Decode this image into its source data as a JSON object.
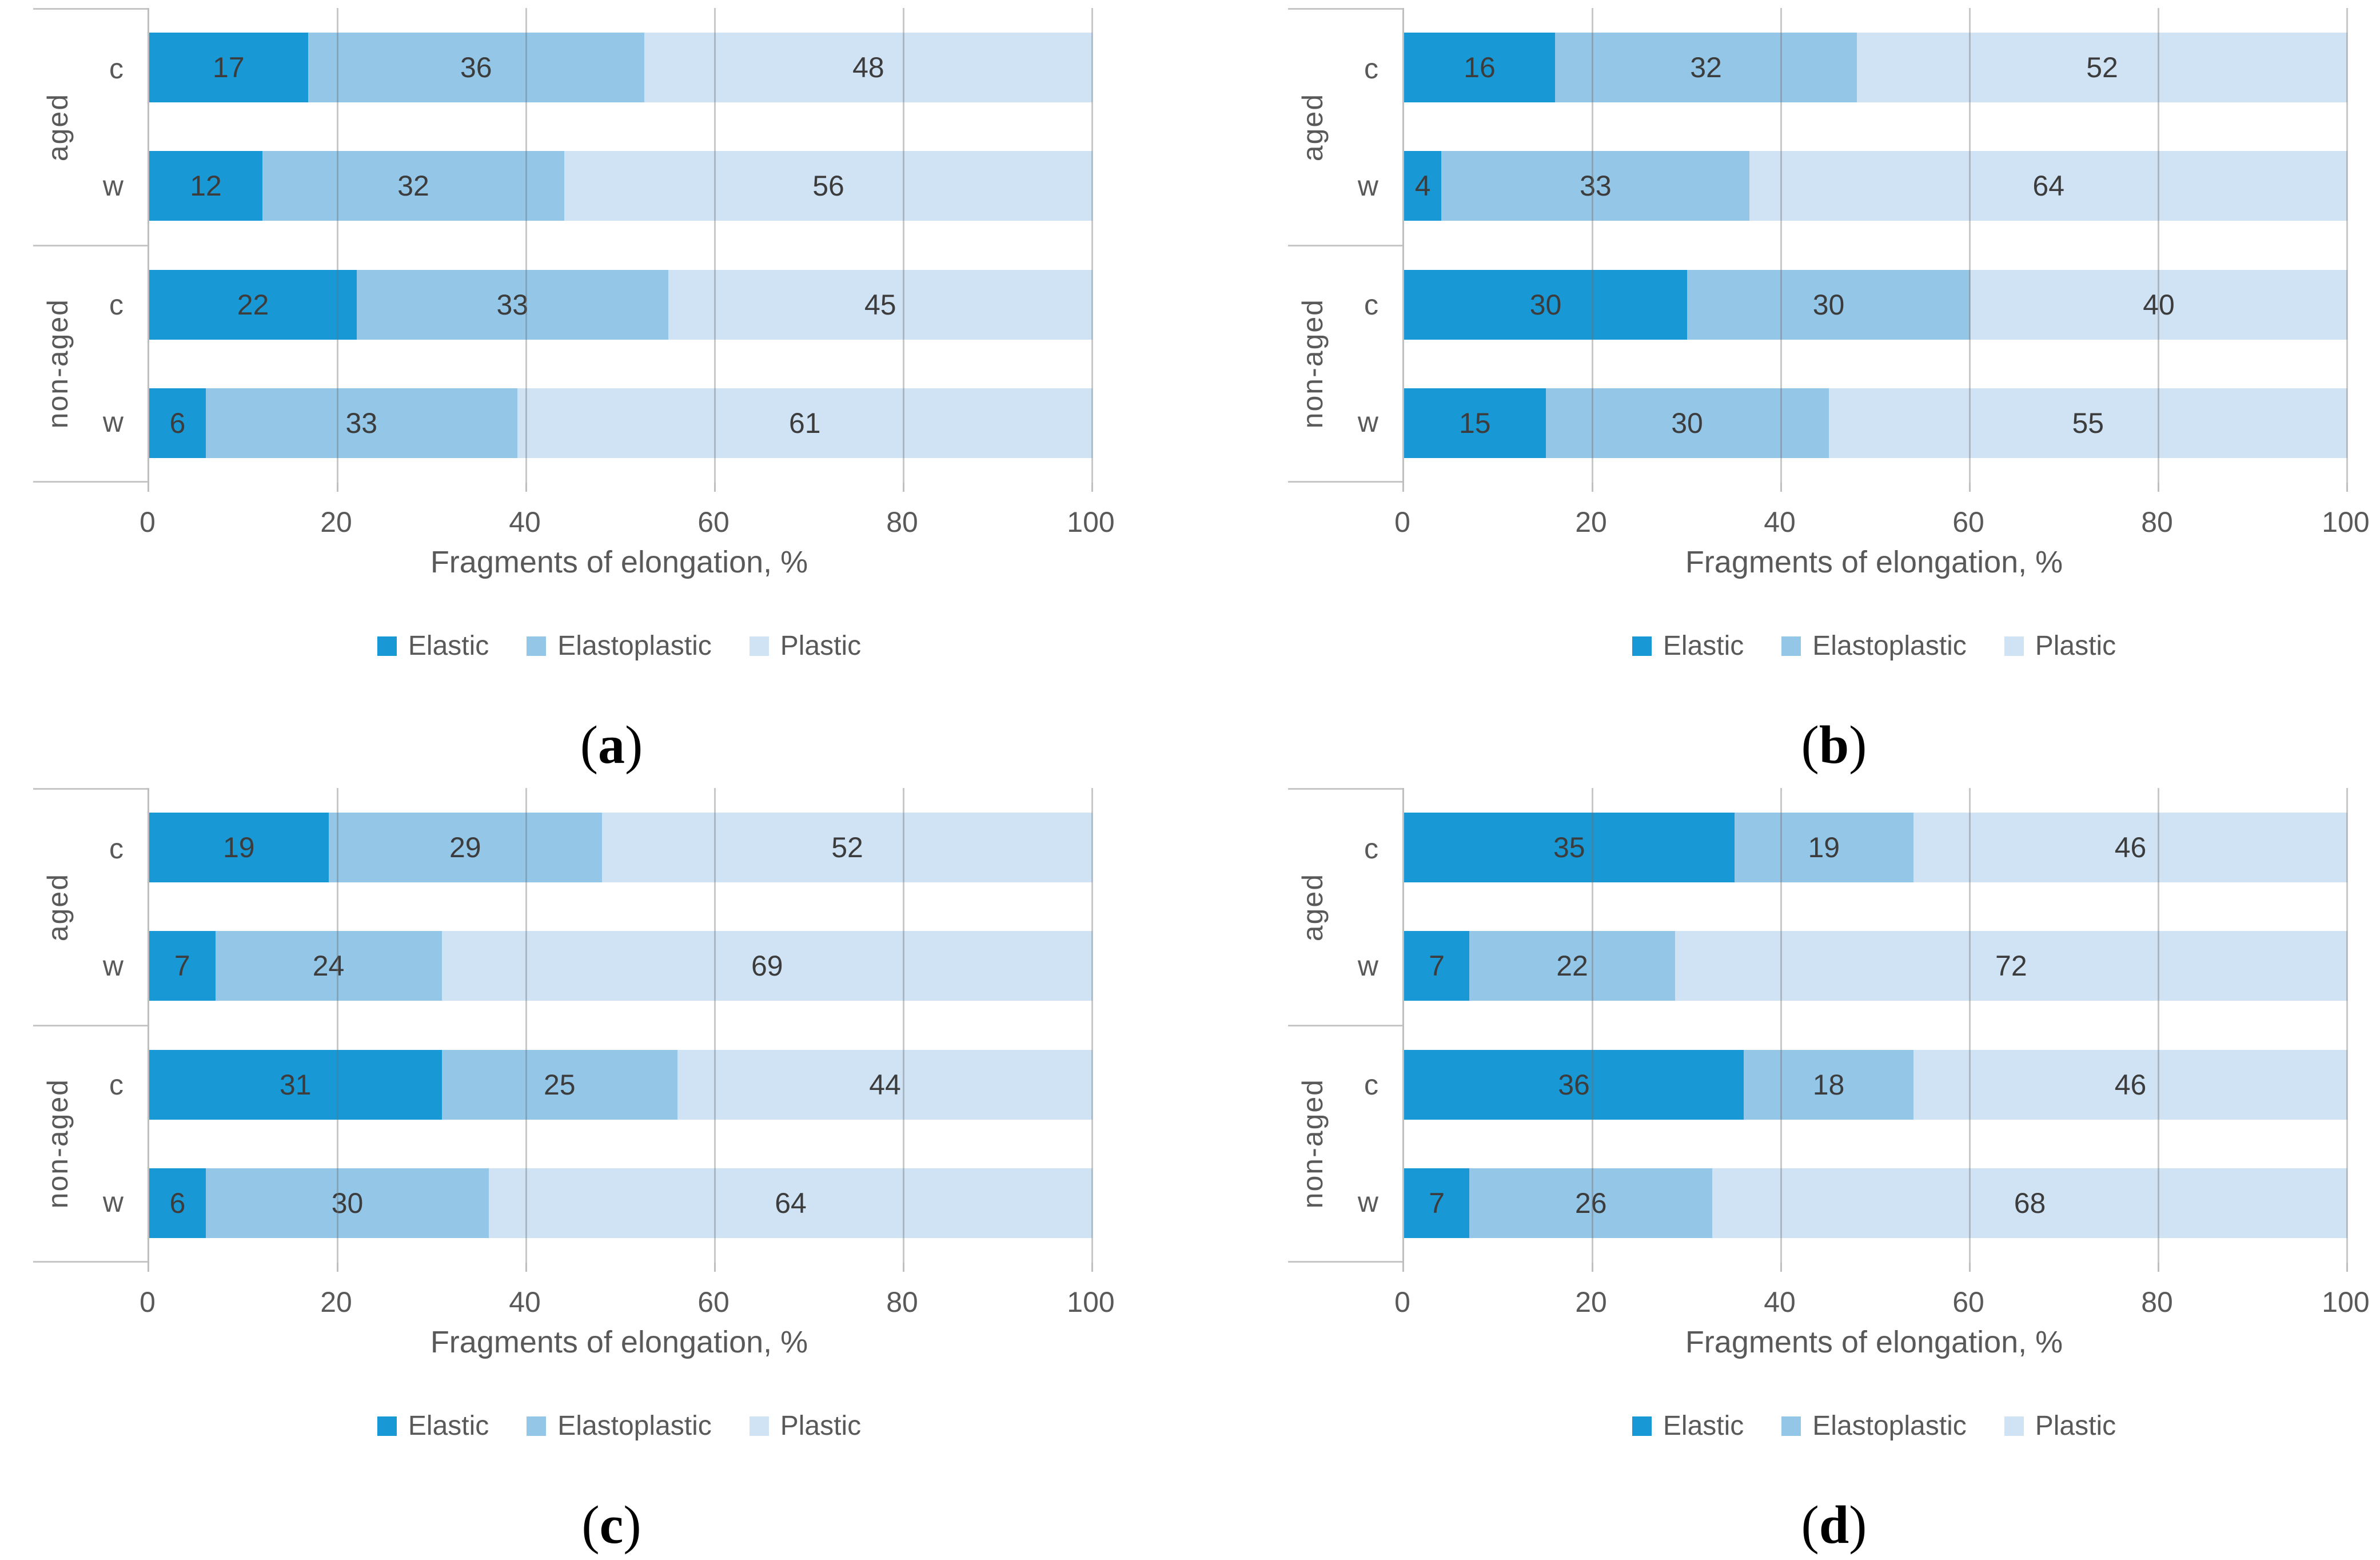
{
  "colors": {
    "elastic": "#1899d6",
    "elastoplastic": "#94c6e8",
    "plastic": "#cfe3f5",
    "gridline": "#a8a8a8",
    "axis_line": "#bfbfbf",
    "axis_text": "#595959",
    "data_label_text": "#3c3c3c",
    "panel_text": "#000000"
  },
  "legend": {
    "items": [
      {
        "label": "Elastic",
        "color": "#1899d6"
      },
      {
        "label": "Elastoplastic",
        "color": "#94c6e8"
      },
      {
        "label": "Plastic",
        "color": "#cfe3f5"
      }
    ]
  },
  "chart_data": [
    {
      "type": "bar",
      "stacked": true,
      "orientation": "horizontal",
      "panel": {
        "open": "(",
        "letter": "a",
        "close": ")"
      },
      "xlabel": "Fragments of elongation, %",
      "xlim": [
        0,
        100
      ],
      "xticks": [
        0,
        20,
        40,
        60,
        80,
        100
      ],
      "grid": true,
      "legend_position": "bottom",
      "series": [
        "Elastic",
        "Elastoplastic",
        "Plastic"
      ],
      "groups": [
        {
          "label": "aged",
          "rows": [
            {
              "category": "c",
              "values": [
                17,
                36,
                48
              ]
            },
            {
              "category": "w",
              "values": [
                12,
                32,
                56
              ]
            }
          ]
        },
        {
          "label": "non-aged",
          "rows": [
            {
              "category": "c",
              "values": [
                22,
                33,
                45
              ]
            },
            {
              "category": "w",
              "values": [
                6,
                33,
                61
              ]
            }
          ]
        }
      ]
    },
    {
      "type": "bar",
      "stacked": true,
      "orientation": "horizontal",
      "panel": {
        "open": "(",
        "letter": "b",
        "close": ")"
      },
      "xlabel": "Fragments of elongation, %",
      "xlim": [
        0,
        100
      ],
      "xticks": [
        0,
        20,
        40,
        60,
        80,
        100
      ],
      "grid": true,
      "legend_position": "bottom",
      "series": [
        "Elastic",
        "Elastoplastic",
        "Plastic"
      ],
      "groups": [
        {
          "label": "aged",
          "rows": [
            {
              "category": "c",
              "values": [
                16,
                32,
                52
              ]
            },
            {
              "category": "w",
              "values": [
                4,
                33,
                64
              ]
            }
          ]
        },
        {
          "label": "non-aged",
          "rows": [
            {
              "category": "c",
              "values": [
                30,
                30,
                40
              ]
            },
            {
              "category": "w",
              "values": [
                15,
                30,
                55
              ]
            }
          ]
        }
      ]
    },
    {
      "type": "bar",
      "stacked": true,
      "orientation": "horizontal",
      "panel": {
        "open": "(",
        "letter": "c",
        "close": ")"
      },
      "xlabel": "Fragments of elongation, %",
      "xlim": [
        0,
        100
      ],
      "xticks": [
        0,
        20,
        40,
        60,
        80,
        100
      ],
      "grid": true,
      "legend_position": "bottom",
      "series": [
        "Elastic",
        "Elastoplastic",
        "Plastic"
      ],
      "groups": [
        {
          "label": "aged",
          "rows": [
            {
              "category": "c",
              "values": [
                19,
                29,
                52
              ]
            },
            {
              "category": "w",
              "values": [
                7,
                24,
                69
              ]
            }
          ]
        },
        {
          "label": "non-aged",
          "rows": [
            {
              "category": "c",
              "values": [
                31,
                25,
                44
              ]
            },
            {
              "category": "w",
              "values": [
                6,
                30,
                64
              ]
            }
          ]
        }
      ]
    },
    {
      "type": "bar",
      "stacked": true,
      "orientation": "horizontal",
      "panel": {
        "open": "(",
        "letter": "d",
        "close": ")"
      },
      "xlabel": "Fragments of elongation, %",
      "xlim": [
        0,
        100
      ],
      "xticks": [
        0,
        20,
        40,
        60,
        80,
        100
      ],
      "grid": true,
      "legend_position": "bottom",
      "series": [
        "Elastic",
        "Elastoplastic",
        "Plastic"
      ],
      "groups": [
        {
          "label": "aged",
          "rows": [
            {
              "category": "c",
              "values": [
                35,
                19,
                46
              ]
            },
            {
              "category": "w",
              "values": [
                7,
                22,
                72
              ]
            }
          ]
        },
        {
          "label": "non-aged",
          "rows": [
            {
              "category": "c",
              "values": [
                36,
                18,
                46
              ]
            },
            {
              "category": "w",
              "values": [
                7,
                26,
                68
              ]
            }
          ]
        }
      ]
    }
  ]
}
